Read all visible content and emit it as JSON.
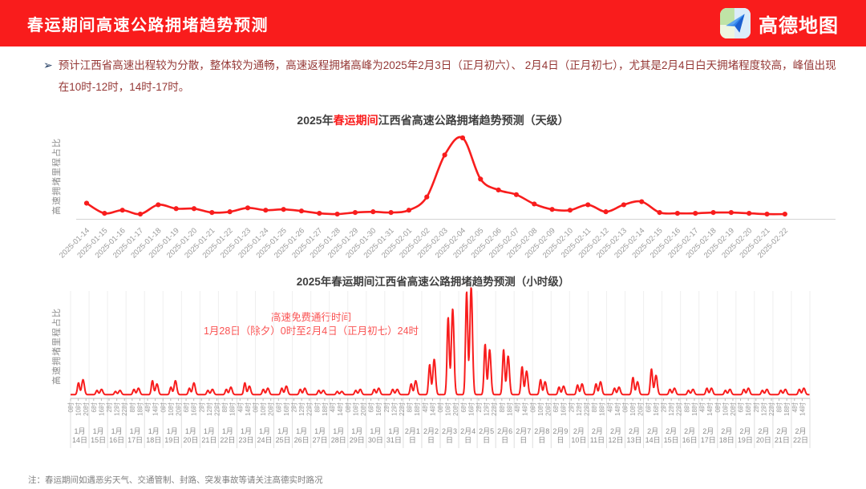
{
  "header": {
    "title": "春运期间高速公路拥堵趋势预测",
    "brand": "高德地图"
  },
  "summary": {
    "bullet": "➢",
    "text": "预计江西省高速出程较为分散，整体较为通畅，高速返程拥堵高峰为2025年2月3日（正月初六）、 2月4日（正月初七），尤其是2月4日白天拥堵程度较高，峰值出现在10时-12时，14时-17时。"
  },
  "footer_note": "注：春运期间如遇恶劣天气、交通管制、封路、突发事故等请关注高德实时路况",
  "colors": {
    "header_bg": "#f91c1c",
    "line_red": "#f81d1d",
    "dark_red_text": "#953735",
    "annotation_red": "#fa5252",
    "title_gray": "#3f3f3f",
    "axis_text_gray": "#999999",
    "axis_line_gray": "#d4d4d4",
    "brand_plane_blue": "#2f83ea"
  },
  "chart_data": [
    {
      "type": "line",
      "title_prefix": "2025年",
      "title_highlight": "春运期间",
      "title_suffix": "江西省高速公路拥堵趋势预测（天级）",
      "ylabel": "高速拥堵里程占比",
      "legend": "none",
      "grid": "off",
      "y_ticks_shown": false,
      "ylim_relative": [
        0,
        1
      ],
      "categories": [
        "2025-01-14",
        "2025-01-15",
        "2025-01-16",
        "2025-01-17",
        "2025-01-18",
        "2025-01-19",
        "2025-01-20",
        "2025-01-21",
        "2025-01-22",
        "2025-01-23",
        "2025-01-24",
        "2025-01-25",
        "2025-01-26",
        "2025-01-27",
        "2025-01-28",
        "2025-01-29",
        "2025-01-30",
        "2025-01-31",
        "2025-02-01",
        "2025-02-02",
        "2025-02-03",
        "2025-02-04",
        "2025-02-05",
        "2025-02-06",
        "2025-02-07",
        "2025-02-08",
        "2025-02-09",
        "2025-02-10",
        "2025-02-11",
        "2025-02-12",
        "2025-02-13",
        "2025-02-14",
        "2025-02-15",
        "2025-02-16",
        "2025-02-17",
        "2025-02-18",
        "2025-02-19",
        "2025-02-20",
        "2025-02-21",
        "2025-02-22"
      ],
      "values": [
        0.16,
        0.03,
        0.07,
        0.02,
        0.14,
        0.09,
        0.09,
        0.04,
        0.05,
        0.1,
        0.07,
        0.08,
        0.06,
        0.03,
        0.02,
        0.04,
        0.05,
        0.04,
        0.07,
        0.24,
        0.78,
        1.0,
        0.47,
        0.33,
        0.27,
        0.15,
        0.08,
        0.07,
        0.14,
        0.05,
        0.14,
        0.18,
        0.04,
        0.03,
        0.03,
        0.04,
        0.04,
        0.03,
        0.02,
        0.02
      ]
    },
    {
      "type": "line",
      "title": "2025年春运期间江西省高速公路拥堵趋势预测（小时级）",
      "ylabel": "高速拥堵里程占比",
      "annotation_line1": "高速免费通行时间",
      "annotation_line2": "1月28日（除夕）0时至2月4日（正月初七）24时",
      "x_range_hours": [
        0,
        960
      ],
      "hour_tick_step": 10,
      "hour_tick_labels": [
        "0时",
        "10时",
        "20时",
        "6时",
        "16时",
        "2时",
        "12时",
        "22时",
        "8时",
        "18时",
        "4时",
        "14时",
        "0时",
        "10时",
        "20时",
        "6时",
        "16时",
        "2时",
        "12时",
        "22时",
        "8时",
        "18时",
        "4时",
        "14时",
        "0时",
        "10时",
        "20时",
        "6时",
        "16时",
        "2时",
        "12时",
        "22时",
        "8时",
        "18时",
        "4时",
        "14时",
        "0时",
        "10时",
        "20时",
        "6时",
        "16时",
        "2时",
        "12时",
        "22时",
        "8时",
        "18时",
        "4时",
        "14时",
        "0时",
        "10时",
        "20时",
        "6时",
        "16时",
        "2时",
        "12时",
        "22时",
        "8时",
        "18时",
        "4时",
        "14时",
        "0时",
        "10时",
        "20时",
        "6时",
        "16时",
        "2时",
        "12时",
        "22时",
        "8时",
        "18时",
        "4时",
        "14时",
        "0时",
        "10时",
        "20时",
        "6时",
        "16时",
        "2时",
        "12时",
        "22时",
        "8时",
        "18时",
        "4时",
        "14时",
        "0时",
        "10时",
        "20时",
        "6时",
        "16时",
        "2时",
        "12时",
        "22时",
        "8时",
        "18时",
        "4时",
        "14时"
      ],
      "day_labels": [
        [
          "1月",
          "14日"
        ],
        [
          "1月",
          "15日"
        ],
        [
          "1月",
          "16日"
        ],
        [
          "1月",
          "17日"
        ],
        [
          "1月",
          "18日"
        ],
        [
          "1月",
          "19日"
        ],
        [
          "1月",
          "20日"
        ],
        [
          "1月",
          "21日"
        ],
        [
          "1月",
          "22日"
        ],
        [
          "1月",
          "23日"
        ],
        [
          "1月",
          "24日"
        ],
        [
          "1月",
          "25日"
        ],
        [
          "1月",
          "26日"
        ],
        [
          "1月",
          "27日"
        ],
        [
          "1月",
          "28日"
        ],
        [
          "1月",
          "29日"
        ],
        [
          "1月",
          "30日"
        ],
        [
          "1月",
          "31日"
        ],
        [
          "2月1",
          "日"
        ],
        [
          "2月2",
          "日"
        ],
        [
          "2月3",
          "日"
        ],
        [
          "2月4",
          "日"
        ],
        [
          "2月5",
          "日"
        ],
        [
          "2月6",
          "日"
        ],
        [
          "2月7",
          "日"
        ],
        [
          "2月8",
          "日"
        ],
        [
          "2月9",
          "日"
        ],
        [
          "2月",
          "10日"
        ],
        [
          "2月",
          "11日"
        ],
        [
          "2月",
          "12日"
        ],
        [
          "2月",
          "13日"
        ],
        [
          "2月",
          "14日"
        ],
        [
          "2月",
          "15日"
        ],
        [
          "2月",
          "16日"
        ],
        [
          "2月",
          "17日"
        ],
        [
          "2月",
          "18日"
        ],
        [
          "2月",
          "19日"
        ],
        [
          "2月",
          "20日"
        ],
        [
          "2月",
          "21日"
        ],
        [
          "2月",
          "22日"
        ]
      ],
      "daily_profile": {
        "note": "each day shows a morning and an afternoon congestion peak; values are relative heights (max=1 on 2月4日)",
        "base": 0.02,
        "morning_peak_hour": 10.3,
        "afternoon_peak_hour": 16.2,
        "day_peaks_morning_afternoon": [
          [
            0.11,
            0.14
          ],
          [
            0.04,
            0.05
          ],
          [
            0.03,
            0.04
          ],
          [
            0.05,
            0.06
          ],
          [
            0.13,
            0.1
          ],
          [
            0.07,
            0.13
          ],
          [
            0.06,
            0.11
          ],
          [
            0.04,
            0.05
          ],
          [
            0.05,
            0.07
          ],
          [
            0.11,
            0.08
          ],
          [
            0.05,
            0.06
          ],
          [
            0.06,
            0.08
          ],
          [
            0.05,
            0.06
          ],
          [
            0.04,
            0.04
          ],
          [
            0.03,
            0.03
          ],
          [
            0.04,
            0.05
          ],
          [
            0.05,
            0.06
          ],
          [
            0.05,
            0.05
          ],
          [
            0.1,
            0.13
          ],
          [
            0.28,
            0.33
          ],
          [
            0.72,
            0.8
          ],
          [
            0.96,
            1.0
          ],
          [
            0.47,
            0.42
          ],
          [
            0.42,
            0.36
          ],
          [
            0.26,
            0.22
          ],
          [
            0.14,
            0.12
          ],
          [
            0.07,
            0.08
          ],
          [
            0.09,
            0.1
          ],
          [
            0.1,
            0.12
          ],
          [
            0.06,
            0.07
          ],
          [
            0.16,
            0.12
          ],
          [
            0.24,
            0.18
          ],
          [
            0.05,
            0.06
          ],
          [
            0.04,
            0.05
          ],
          [
            0.06,
            0.06
          ],
          [
            0.04,
            0.05
          ],
          [
            0.05,
            0.06
          ],
          [
            0.04,
            0.05
          ],
          [
            0.04,
            0.05
          ],
          [
            0.05,
            0.06
          ]
        ]
      }
    }
  ]
}
